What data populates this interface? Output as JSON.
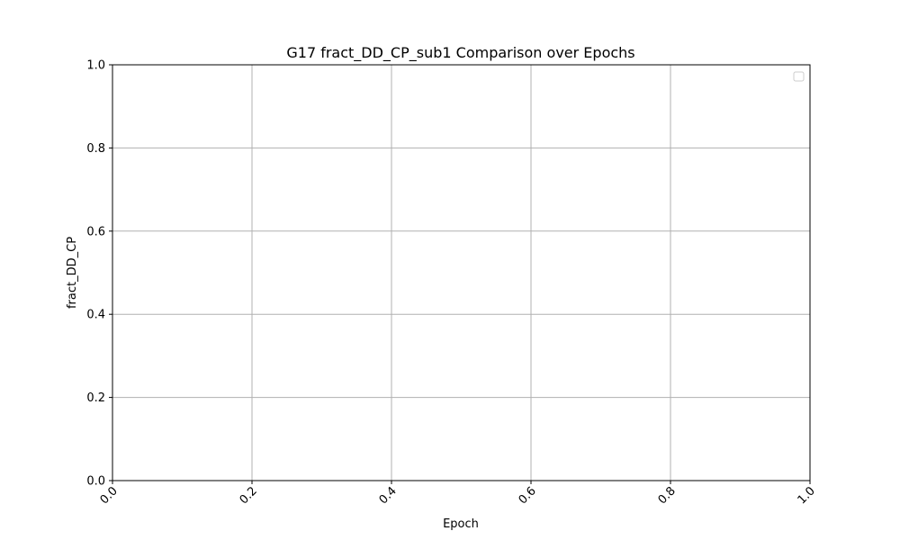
{
  "chart_data": {
    "type": "line",
    "title": "G17 fract_DD_CP_sub1 Comparison over Epochs",
    "xlabel": "Epoch",
    "ylabel": "fract_DD_CP",
    "xlim": [
      0.0,
      1.0
    ],
    "ylim": [
      0.0,
      1.0
    ],
    "x_ticks": [
      "0.0",
      "0.2",
      "0.4",
      "0.6",
      "0.8",
      "1.0"
    ],
    "y_ticks": [
      "0.0",
      "0.2",
      "0.4",
      "0.6",
      "0.8",
      "1.0"
    ],
    "grid": true,
    "legend": "top-right",
    "series": []
  }
}
